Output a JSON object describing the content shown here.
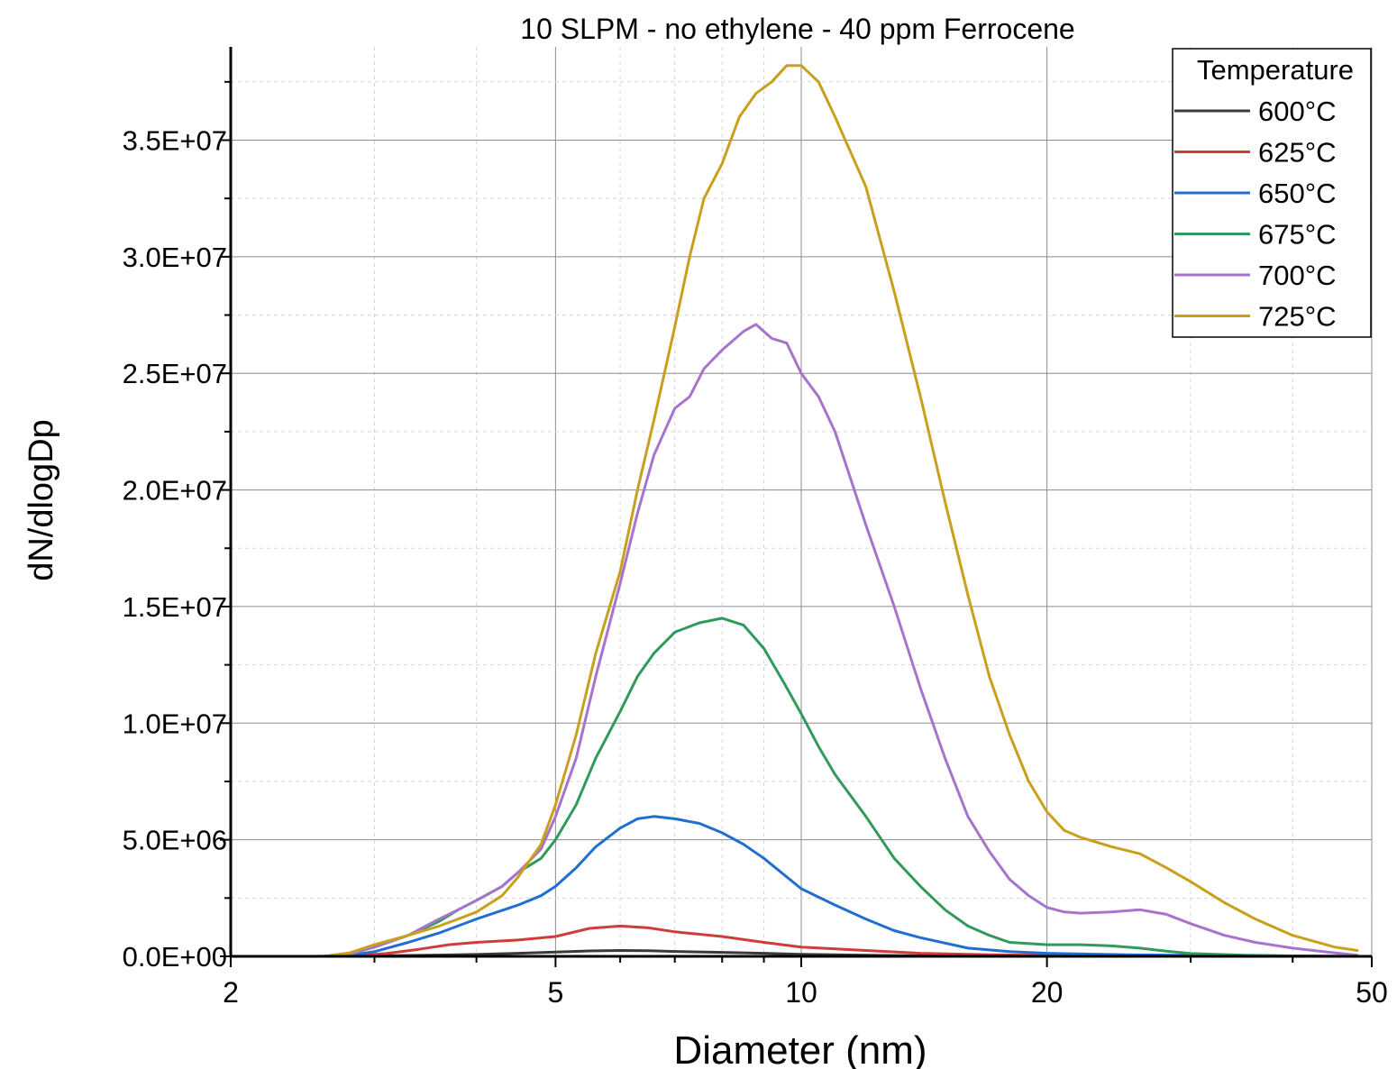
{
  "chart_data": {
    "type": "line",
    "title": "10 SLPM - no ethylene - 40 ppm Ferrocene",
    "xlabel": "Diameter (nm)",
    "ylabel": "dN/dlogDp",
    "xscale": "log",
    "xlim": [
      2,
      50
    ],
    "ylim": [
      0,
      39000000
    ],
    "x_ticks": [
      2,
      5,
      10,
      20,
      50
    ],
    "x_tick_labels": [
      "2",
      "5",
      "10",
      "20",
      "50"
    ],
    "y_ticks": [
      0,
      5000000,
      10000000,
      15000000,
      20000000,
      25000000,
      30000000,
      35000000
    ],
    "y_tick_labels": [
      "0.0E+00",
      "5.0E+06",
      "1.0E+07",
      "1.5E+07",
      "2.0E+07",
      "2.5E+07",
      "3.0E+07",
      "3.5E+07"
    ],
    "grid": true,
    "legend": {
      "title": "Temperature",
      "position": "top-right"
    },
    "series": [
      {
        "name": "600°C",
        "color": "#3a3a3a",
        "points": [
          [
            2,
            0
          ],
          [
            2.5,
            0
          ],
          [
            2.8,
            10000
          ],
          [
            3,
            20000
          ],
          [
            3.5,
            50000
          ],
          [
            4,
            80000
          ],
          [
            4.5,
            130000
          ],
          [
            5,
            180000
          ],
          [
            5.5,
            230000
          ],
          [
            6,
            250000
          ],
          [
            6.5,
            240000
          ],
          [
            7,
            210000
          ],
          [
            8,
            170000
          ],
          [
            9,
            130000
          ],
          [
            10,
            90000
          ],
          [
            12,
            50000
          ],
          [
            14,
            25000
          ],
          [
            17,
            10000
          ],
          [
            20,
            5000
          ],
          [
            30,
            0
          ],
          [
            48,
            0
          ]
        ]
      },
      {
        "name": "625°C",
        "color": "#d03c3c",
        "points": [
          [
            2,
            0
          ],
          [
            2.6,
            0
          ],
          [
            2.9,
            50000
          ],
          [
            3.1,
            120000
          ],
          [
            3.4,
            300000
          ],
          [
            3.7,
            500000
          ],
          [
            4,
            600000
          ],
          [
            4.5,
            700000
          ],
          [
            5,
            850000
          ],
          [
            5.5,
            1200000
          ],
          [
            6,
            1300000
          ],
          [
            6.5,
            1220000
          ],
          [
            7,
            1050000
          ],
          [
            8,
            850000
          ],
          [
            9,
            600000
          ],
          [
            10,
            400000
          ],
          [
            12,
            250000
          ],
          [
            14,
            130000
          ],
          [
            17,
            70000
          ],
          [
            20,
            40000
          ],
          [
            25,
            20000
          ],
          [
            30,
            10000
          ],
          [
            40,
            5000
          ],
          [
            48,
            0
          ]
        ]
      },
      {
        "name": "650°C",
        "color": "#1f6ed0",
        "points": [
          [
            2,
            0
          ],
          [
            2.6,
            0
          ],
          [
            2.8,
            50000
          ],
          [
            3,
            200000
          ],
          [
            3.3,
            600000
          ],
          [
            3.6,
            1000000
          ],
          [
            4,
            1600000
          ],
          [
            4.5,
            2200000
          ],
          [
            4.8,
            2600000
          ],
          [
            5,
            3000000
          ],
          [
            5.3,
            3800000
          ],
          [
            5.6,
            4700000
          ],
          [
            6,
            5500000
          ],
          [
            6.3,
            5900000
          ],
          [
            6.6,
            6000000
          ],
          [
            7,
            5900000
          ],
          [
            7.5,
            5700000
          ],
          [
            8,
            5300000
          ],
          [
            8.5,
            4800000
          ],
          [
            9,
            4200000
          ],
          [
            10,
            2900000
          ],
          [
            11,
            2200000
          ],
          [
            12,
            1600000
          ],
          [
            13,
            1100000
          ],
          [
            14,
            800000
          ],
          [
            16,
            350000
          ],
          [
            18,
            200000
          ],
          [
            20,
            130000
          ],
          [
            25,
            70000
          ],
          [
            30,
            40000
          ],
          [
            40,
            20000
          ],
          [
            48,
            0
          ]
        ]
      },
      {
        "name": "675°C",
        "color": "#2f9a5c",
        "points": [
          [
            2,
            0
          ],
          [
            2.6,
            0
          ],
          [
            2.8,
            100000
          ],
          [
            3,
            400000
          ],
          [
            3.3,
            900000
          ],
          [
            3.6,
            1500000
          ],
          [
            3.8,
            2000000
          ],
          [
            4,
            2400000
          ],
          [
            4.3,
            3000000
          ],
          [
            4.5,
            3600000
          ],
          [
            4.8,
            4200000
          ],
          [
            5,
            5000000
          ],
          [
            5.3,
            6500000
          ],
          [
            5.6,
            8500000
          ],
          [
            6,
            10500000
          ],
          [
            6.3,
            12000000
          ],
          [
            6.6,
            13000000
          ],
          [
            7,
            13900000
          ],
          [
            7.5,
            14300000
          ],
          [
            8,
            14500000
          ],
          [
            8.5,
            14200000
          ],
          [
            9,
            13200000
          ],
          [
            9.5,
            11800000
          ],
          [
            10,
            10400000
          ],
          [
            10.5,
            9000000
          ],
          [
            11,
            7800000
          ],
          [
            12,
            6000000
          ],
          [
            13,
            4200000
          ],
          [
            14,
            3000000
          ],
          [
            15,
            2000000
          ],
          [
            16,
            1300000
          ],
          [
            17,
            900000
          ],
          [
            18,
            600000
          ],
          [
            20,
            500000
          ],
          [
            22,
            500000
          ],
          [
            24,
            450000
          ],
          [
            26,
            350000
          ],
          [
            28,
            220000
          ],
          [
            30,
            120000
          ],
          [
            35,
            50000
          ],
          [
            40,
            20000
          ],
          [
            48,
            0
          ]
        ]
      },
      {
        "name": "700°C",
        "color": "#a674cc",
        "points": [
          [
            2,
            0
          ],
          [
            2.6,
            0
          ],
          [
            2.8,
            100000
          ],
          [
            3,
            400000
          ],
          [
            3.3,
            900000
          ],
          [
            3.6,
            1600000
          ],
          [
            3.8,
            2000000
          ],
          [
            4,
            2400000
          ],
          [
            4.3,
            3000000
          ],
          [
            4.5,
            3600000
          ],
          [
            4.8,
            4600000
          ],
          [
            5,
            6000000
          ],
          [
            5.3,
            8500000
          ],
          [
            5.6,
            12000000
          ],
          [
            6,
            16000000
          ],
          [
            6.3,
            19000000
          ],
          [
            6.6,
            21500000
          ],
          [
            7,
            23500000
          ],
          [
            7.3,
            24000000
          ],
          [
            7.6,
            25200000
          ],
          [
            8,
            26000000
          ],
          [
            8.5,
            26800000
          ],
          [
            8.8,
            27100000
          ],
          [
            9.2,
            26500000
          ],
          [
            9.6,
            26300000
          ],
          [
            10,
            25000000
          ],
          [
            10.5,
            24000000
          ],
          [
            11,
            22500000
          ],
          [
            12,
            18500000
          ],
          [
            13,
            15000000
          ],
          [
            14,
            11500000
          ],
          [
            15,
            8500000
          ],
          [
            16,
            6000000
          ],
          [
            17,
            4500000
          ],
          [
            18,
            3300000
          ],
          [
            19,
            2600000
          ],
          [
            20,
            2100000
          ],
          [
            21,
            1900000
          ],
          [
            22,
            1850000
          ],
          [
            24,
            1900000
          ],
          [
            26,
            2000000
          ],
          [
            28,
            1800000
          ],
          [
            30,
            1400000
          ],
          [
            33,
            900000
          ],
          [
            36,
            600000
          ],
          [
            40,
            350000
          ],
          [
            45,
            150000
          ],
          [
            48,
            50000
          ]
        ]
      },
      {
        "name": "725°C",
        "color": "#c8a01c",
        "points": [
          [
            2,
            0
          ],
          [
            2.6,
            0
          ],
          [
            2.8,
            150000
          ],
          [
            3,
            500000
          ],
          [
            3.3,
            900000
          ],
          [
            3.6,
            1300000
          ],
          [
            3.8,
            1600000
          ],
          [
            4,
            1900000
          ],
          [
            4.3,
            2600000
          ],
          [
            4.5,
            3400000
          ],
          [
            4.8,
            4800000
          ],
          [
            5,
            6500000
          ],
          [
            5.3,
            9500000
          ],
          [
            5.6,
            13000000
          ],
          [
            6,
            16500000
          ],
          [
            6.3,
            20000000
          ],
          [
            6.6,
            23000000
          ],
          [
            7,
            27000000
          ],
          [
            7.3,
            30000000
          ],
          [
            7.6,
            32500000
          ],
          [
            8,
            34000000
          ],
          [
            8.4,
            36000000
          ],
          [
            8.8,
            37000000
          ],
          [
            9.2,
            37500000
          ],
          [
            9.6,
            38200000
          ],
          [
            10,
            38200000
          ],
          [
            10.5,
            37500000
          ],
          [
            11,
            36000000
          ],
          [
            12,
            33000000
          ],
          [
            13,
            28500000
          ],
          [
            14,
            24000000
          ],
          [
            15,
            19500000
          ],
          [
            16,
            15500000
          ],
          [
            17,
            12000000
          ],
          [
            18,
            9500000
          ],
          [
            19,
            7500000
          ],
          [
            20,
            6200000
          ],
          [
            21,
            5400000
          ],
          [
            22,
            5100000
          ],
          [
            24,
            4700000
          ],
          [
            26,
            4400000
          ],
          [
            28,
            3800000
          ],
          [
            30,
            3200000
          ],
          [
            33,
            2300000
          ],
          [
            36,
            1600000
          ],
          [
            40,
            900000
          ],
          [
            45,
            400000
          ],
          [
            48,
            250000
          ]
        ]
      }
    ]
  }
}
